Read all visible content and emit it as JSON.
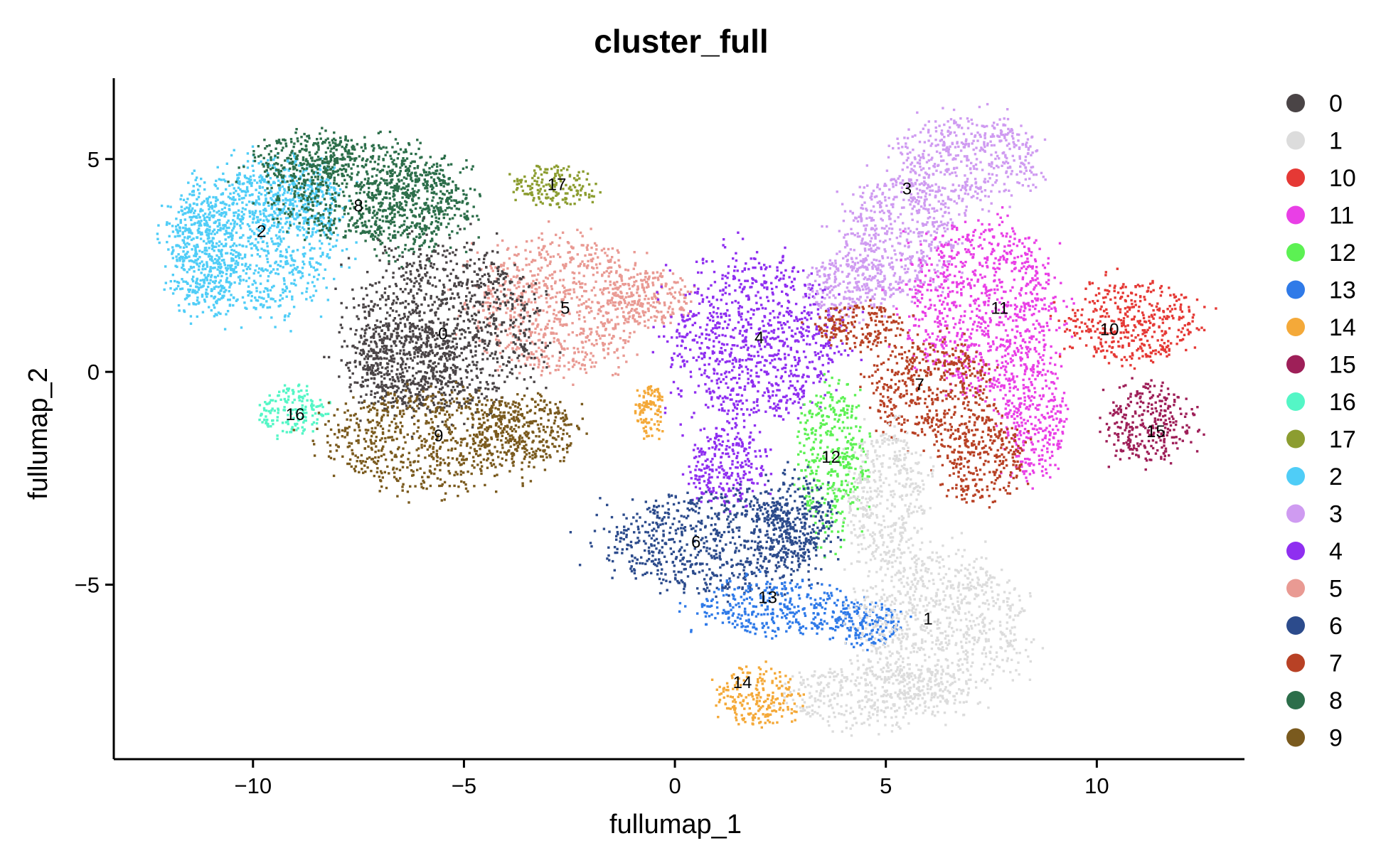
{
  "chart_data": {
    "type": "scatter",
    "title": "cluster_full",
    "xlabel": "fullumap_1",
    "ylabel": "fullumap_2",
    "xlim": [
      -13.3,
      13.5
    ],
    "ylim": [
      -9.1,
      6.9
    ],
    "xticks": [
      {
        "value": -10,
        "label": "−10"
      },
      {
        "value": -5,
        "label": "−5"
      },
      {
        "value": 0,
        "label": "0"
      },
      {
        "value": 5,
        "label": "5"
      },
      {
        "value": 10,
        "label": "10"
      }
    ],
    "yticks": [
      {
        "value": 5,
        "label": "5"
      },
      {
        "value": 0,
        "label": "0"
      },
      {
        "value": -5,
        "label": "−5"
      }
    ],
    "grid": false,
    "legend_position": "right",
    "legend": [
      {
        "label": "0",
        "color": "#4a4446"
      },
      {
        "label": "1",
        "color": "#dcdcdc"
      },
      {
        "label": "10",
        "color": "#e53935"
      },
      {
        "label": "11",
        "color": "#e93fe6"
      },
      {
        "label": "12",
        "color": "#5cf153"
      },
      {
        "label": "13",
        "color": "#2f7ae8"
      },
      {
        "label": "14",
        "color": "#f4a939"
      },
      {
        "label": "15",
        "color": "#9e1f58"
      },
      {
        "label": "16",
        "color": "#54f6c6"
      },
      {
        "label": "17",
        "color": "#8c9d30"
      },
      {
        "label": "2",
        "color": "#4fcdf7"
      },
      {
        "label": "3",
        "color": "#cf9bf1"
      },
      {
        "label": "4",
        "color": "#8f2ff0"
      },
      {
        "label": "5",
        "color": "#e99a93"
      },
      {
        "label": "6",
        "color": "#2c4b8c"
      },
      {
        "label": "7",
        "color": "#b84125"
      },
      {
        "label": "8",
        "color": "#2c6e4a"
      },
      {
        "label": "9",
        "color": "#7a5a1e"
      }
    ],
    "clusters": [
      {
        "label": "2",
        "x": -9.8,
        "y": 3.3,
        "color": "#4fcdf7",
        "blobs": [
          [
            -10,
            3.2,
            1.9,
            1.7
          ],
          [
            -11.2,
            2.8,
            0.8,
            1.3
          ],
          [
            -9.2,
            4.2,
            1.2,
            0.8
          ]
        ]
      },
      {
        "label": "8",
        "x": -7.5,
        "y": 3.9,
        "color": "#2c6e4a",
        "blobs": [
          [
            -7.5,
            4.3,
            2.2,
            1.1
          ],
          [
            -6.2,
            3.8,
            1.3,
            1.0
          ],
          [
            -8.7,
            5.0,
            1.2,
            0.6
          ]
        ]
      },
      {
        "label": "17",
        "x": -2.8,
        "y": 4.4,
        "color": "#8c9d30",
        "blobs": [
          [
            -2.9,
            4.4,
            0.9,
            0.45
          ]
        ]
      },
      {
        "label": "5",
        "x": -2.6,
        "y": 1.5,
        "color": "#e99a93",
        "blobs": [
          [
            -2.7,
            1.6,
            1.9,
            1.5
          ],
          [
            -0.6,
            1.8,
            0.9,
            0.6
          ]
        ]
      },
      {
        "label": "0",
        "x": -5.5,
        "y": 0.9,
        "color": "#4a4446",
        "blobs": [
          [
            -5.5,
            1.0,
            2.1,
            1.9
          ],
          [
            -6.5,
            0.2,
            1.3,
            1.0
          ]
        ]
      },
      {
        "label": "16",
        "x": -9.0,
        "y": -1.0,
        "color": "#54f6c6",
        "blobs": [
          [
            -9.1,
            -0.9,
            0.75,
            0.55
          ]
        ]
      },
      {
        "label": "9",
        "x": -5.6,
        "y": -1.5,
        "color": "#7a5a1e",
        "blobs": [
          [
            -5.8,
            -1.6,
            2.3,
            1.1
          ],
          [
            -3.5,
            -1.3,
            1.2,
            0.7
          ]
        ]
      },
      {
        "label": "4",
        "x": 2.0,
        "y": 0.8,
        "color": "#8f2ff0",
        "blobs": [
          [
            1.9,
            0.8,
            1.9,
            1.8
          ],
          [
            1.2,
            -2.2,
            0.9,
            0.9
          ]
        ]
      },
      {
        "label": "3",
        "x": 5.5,
        "y": 4.3,
        "color": "#cf9bf1",
        "blobs": [
          [
            6.9,
            5.0,
            1.6,
            1.0
          ],
          [
            5.3,
            3.2,
            1.3,
            1.4
          ],
          [
            4.1,
            2.0,
            0.9,
            0.7
          ]
        ]
      },
      {
        "label": "11",
        "x": 7.7,
        "y": 1.5,
        "color": "#e93fe6",
        "blobs": [
          [
            7.3,
            1.5,
            1.7,
            1.9
          ],
          [
            8.5,
            -1.0,
            0.7,
            1.4
          ]
        ]
      },
      {
        "label": "10",
        "x": 10.3,
        "y": 1.0,
        "color": "#e53935",
        "blobs": [
          [
            10.8,
            1.2,
            1.5,
            0.9
          ]
        ]
      },
      {
        "label": "15",
        "x": 11.4,
        "y": -1.4,
        "color": "#9e1f58",
        "blobs": [
          [
            11.2,
            -1.2,
            1.0,
            0.9
          ]
        ]
      },
      {
        "label": "7",
        "x": 5.8,
        "y": -0.3,
        "color": "#b84125",
        "blobs": [
          [
            6.0,
            -0.4,
            1.4,
            1.1
          ],
          [
            7.2,
            -2.0,
            1.0,
            1.0
          ],
          [
            4.4,
            1.1,
            1.0,
            0.5
          ]
        ]
      },
      {
        "label": "12",
        "x": 3.7,
        "y": -2.0,
        "color": "#5cf153",
        "blobs": [
          [
            3.7,
            -2.1,
            0.75,
            1.7
          ]
        ]
      },
      {
        "label": "6",
        "x": 0.5,
        "y": -4.0,
        "color": "#2c4b8c",
        "blobs": [
          [
            0.9,
            -4.0,
            2.4,
            1.1
          ],
          [
            2.8,
            -3.4,
            0.9,
            1.0
          ]
        ]
      },
      {
        "label": "13",
        "x": 2.2,
        "y": -5.3,
        "color": "#2f7ae8",
        "blobs": [
          [
            2.4,
            -5.5,
            1.8,
            0.6
          ],
          [
            4.5,
            -5.9,
            0.8,
            0.5
          ]
        ]
      },
      {
        "label": "1",
        "x": 6.0,
        "y": -5.8,
        "color": "#dcdcdc",
        "blobs": [
          [
            6.2,
            -6.0,
            1.9,
            1.7
          ],
          [
            5.0,
            -3.0,
            0.9,
            1.6
          ],
          [
            4.6,
            -7.6,
            1.9,
            0.7
          ]
        ]
      },
      {
        "label": "14",
        "x": 1.6,
        "y": -7.3,
        "color": "#f4a939",
        "blobs": [
          [
            1.9,
            -7.6,
            0.9,
            0.65
          ],
          [
            -0.6,
            -0.9,
            0.3,
            0.6
          ]
        ]
      }
    ]
  }
}
